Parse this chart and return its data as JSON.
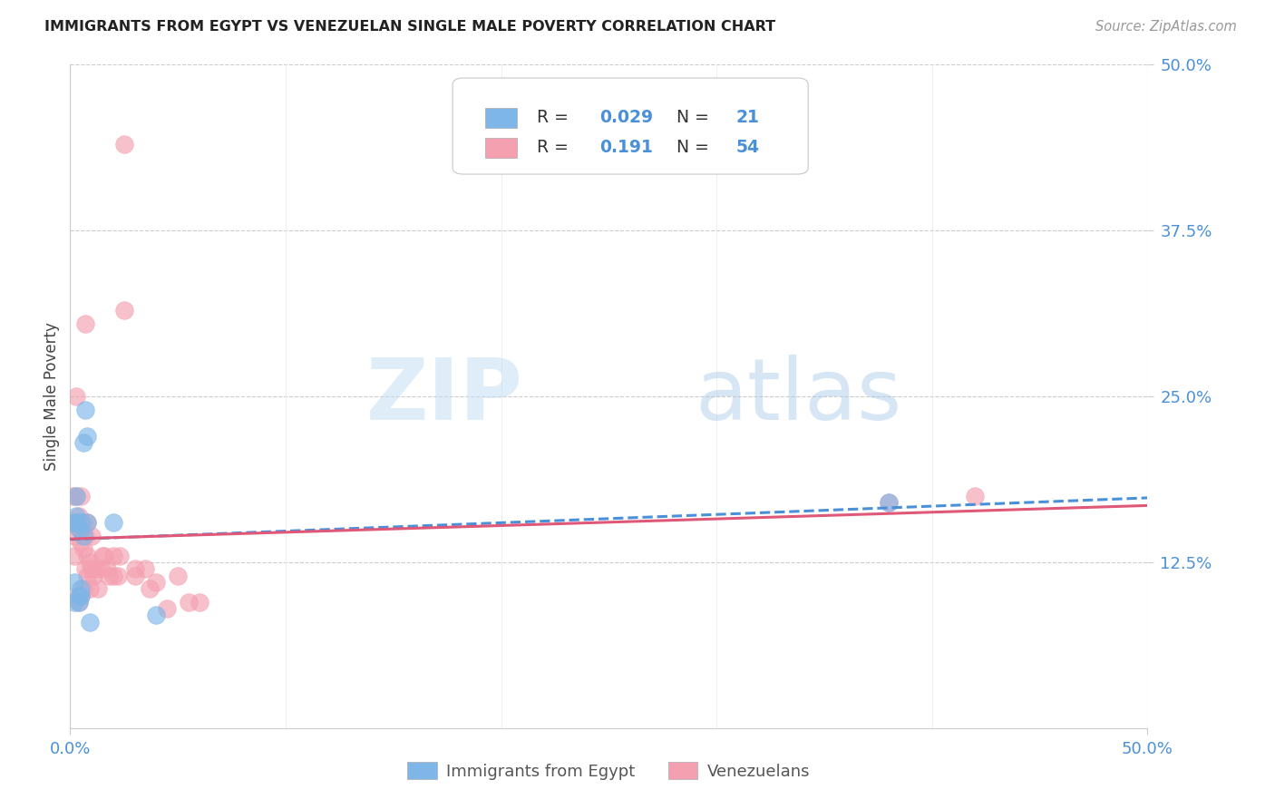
{
  "title": "IMMIGRANTS FROM EGYPT VS VENEZUELAN SINGLE MALE POVERTY CORRELATION CHART",
  "source": "Source: ZipAtlas.com",
  "xlabel": "",
  "ylabel": "Single Male Poverty",
  "xlim": [
    0.0,
    0.5
  ],
  "ylim": [
    0.0,
    0.5
  ],
  "xtick_labels": [
    "0.0%",
    "50.0%"
  ],
  "xtick_positions": [
    0.0,
    0.5
  ],
  "ytick_labels": [
    "12.5%",
    "25.0%",
    "37.5%",
    "50.0%"
  ],
  "ytick_positions": [
    0.125,
    0.25,
    0.375,
    0.5
  ],
  "egypt_color": "#7EB6E8",
  "venezuela_color": "#F4A0B0",
  "egypt_line_color": "#4A90D9",
  "venezuela_line_color": "#E05878",
  "egypt_R": 0.029,
  "egypt_N": 21,
  "venezuela_R": 0.191,
  "venezuela_N": 54,
  "background_color": "#FFFFFF",
  "watermark_zip": "ZIP",
  "watermark_atlas": "atlas",
  "egypt_x": [
    0.001,
    0.002,
    0.002,
    0.003,
    0.003,
    0.003,
    0.004,
    0.004,
    0.004,
    0.005,
    0.005,
    0.005,
    0.006,
    0.006,
    0.007,
    0.008,
    0.008,
    0.009,
    0.02,
    0.04,
    0.38
  ],
  "egypt_y": [
    0.155,
    0.095,
    0.11,
    0.155,
    0.16,
    0.175,
    0.095,
    0.1,
    0.15,
    0.1,
    0.105,
    0.155,
    0.145,
    0.215,
    0.24,
    0.155,
    0.22,
    0.08,
    0.155,
    0.085,
    0.17
  ],
  "venezuela_x": [
    0.001,
    0.001,
    0.002,
    0.002,
    0.002,
    0.003,
    0.003,
    0.003,
    0.004,
    0.004,
    0.004,
    0.004,
    0.005,
    0.005,
    0.005,
    0.005,
    0.006,
    0.006,
    0.006,
    0.007,
    0.007,
    0.007,
    0.008,
    0.008,
    0.008,
    0.009,
    0.009,
    0.01,
    0.01,
    0.011,
    0.012,
    0.013,
    0.014,
    0.015,
    0.016,
    0.017,
    0.018,
    0.02,
    0.02,
    0.022,
    0.023,
    0.025,
    0.025,
    0.03,
    0.03,
    0.035,
    0.037,
    0.04,
    0.045,
    0.05,
    0.055,
    0.06,
    0.38,
    0.42
  ],
  "venezuela_y": [
    0.155,
    0.175,
    0.13,
    0.145,
    0.155,
    0.155,
    0.175,
    0.25,
    0.095,
    0.1,
    0.15,
    0.16,
    0.1,
    0.14,
    0.15,
    0.175,
    0.105,
    0.135,
    0.155,
    0.12,
    0.145,
    0.305,
    0.115,
    0.13,
    0.155,
    0.105,
    0.125,
    0.12,
    0.145,
    0.115,
    0.12,
    0.105,
    0.12,
    0.13,
    0.13,
    0.12,
    0.115,
    0.115,
    0.13,
    0.115,
    0.13,
    0.315,
    0.44,
    0.12,
    0.115,
    0.12,
    0.105,
    0.11,
    0.09,
    0.115,
    0.095,
    0.095,
    0.17,
    0.175
  ],
  "legend_egypt_label": "Immigrants from Egypt",
  "legend_venezuela_label": "Venezuelans"
}
